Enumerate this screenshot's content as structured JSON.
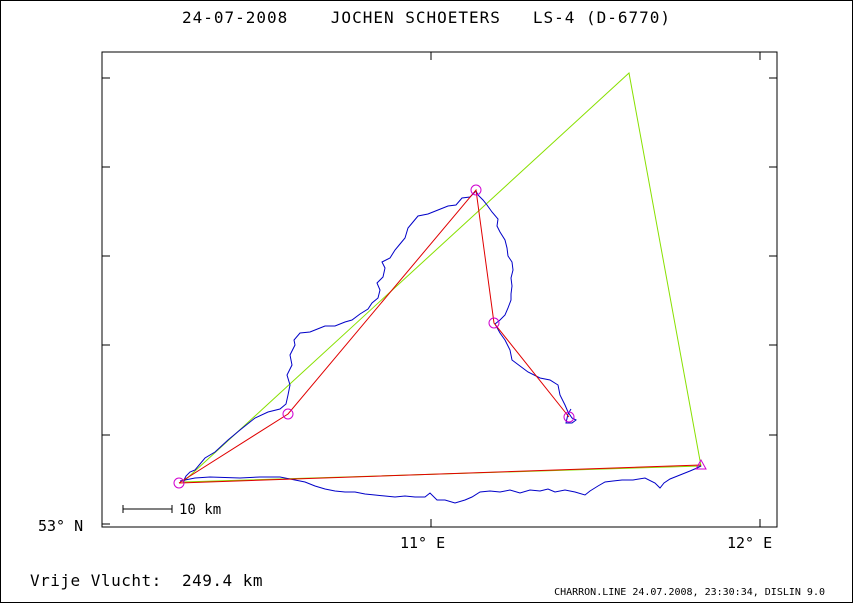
{
  "title": "24-07-2008    JOCHEN SCHOETERS   LS-4 (D-6770)",
  "axes": {
    "lat_label": "53° N",
    "lon_labels": [
      "11° E",
      "12° E"
    ]
  },
  "scale_bar": {
    "label": "10 km"
  },
  "footer": {
    "distance_label": "Vrije Vlucht:",
    "distance_value": "249.4 km",
    "credit": "CHARRON.LINE 24.07.2008, 23:30:34, DISLIN 9.0"
  },
  "colors": {
    "track": "#0000c8",
    "task": "#e00000",
    "triangle": "#88e000",
    "turnpoint": "#d000d0",
    "frame": "#000000"
  }
}
